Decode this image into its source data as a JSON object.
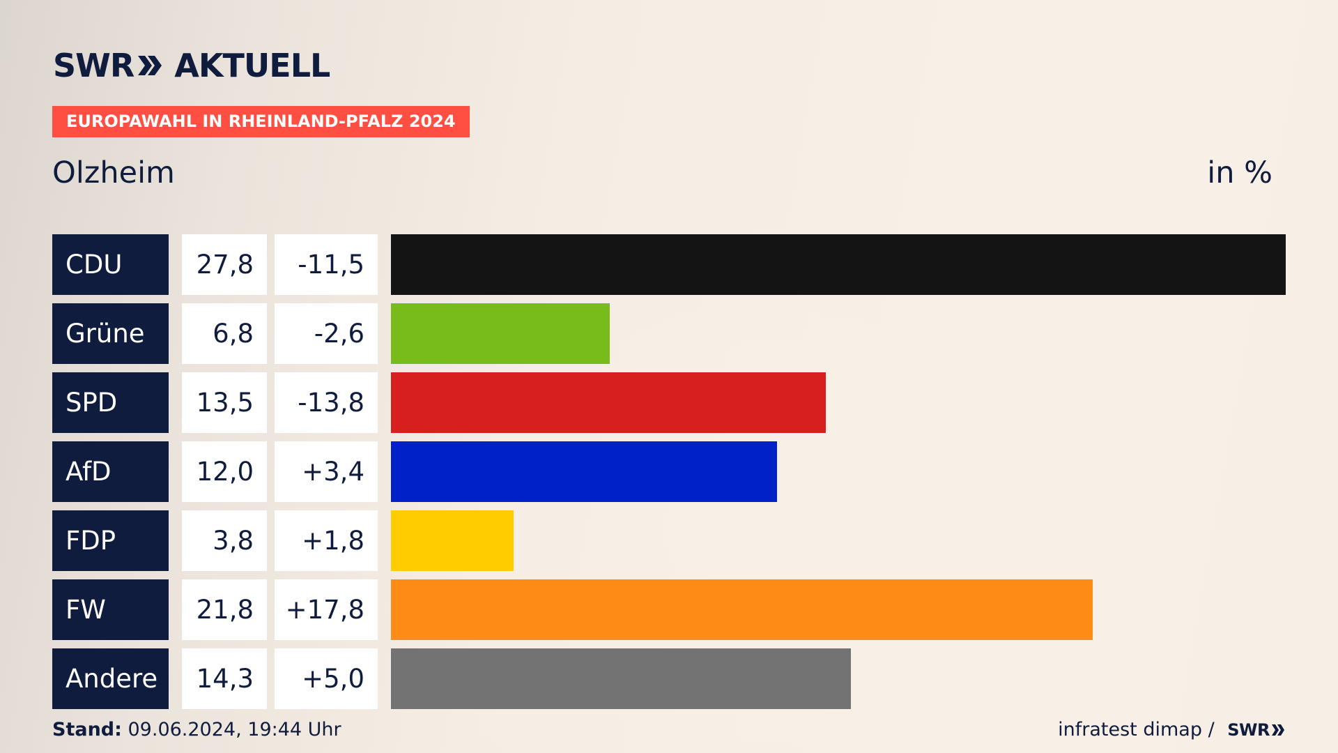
{
  "header": {
    "logo_swr": "SWR",
    "logo_aktuell": "AKTUELL",
    "logo_icon": "double-chevron-icon",
    "banner": "EUROPAWAHL IN RHEINLAND-PFALZ 2024",
    "place": "Olzheim",
    "unit": "in %"
  },
  "chart_data": {
    "type": "bar",
    "orientation": "horizontal",
    "title": "Olzheim",
    "unit_label": "in %",
    "categories": [
      "CDU",
      "Grüne",
      "SPD",
      "AfD",
      "FDP",
      "FW",
      "Andere"
    ],
    "values": [
      27.8,
      6.8,
      13.5,
      12.0,
      3.8,
      21.8,
      14.3
    ],
    "value_labels": [
      "27,8",
      "6,8",
      "13,5",
      "12,0",
      "3,8",
      "21,8",
      "14,3"
    ],
    "diff_labels": [
      "-11,5",
      "-2,6",
      "-13,8",
      "+3,4",
      "+1,8",
      "+17,8",
      "+5,0"
    ],
    "colors": [
      "#141414",
      "#78bc1b",
      "#d71f1d",
      "#0021c8",
      "#ffcc00",
      "#ff8c17",
      "#737373"
    ],
    "xlim": [
      0,
      27.8
    ],
    "grid": false,
    "legend": "none"
  },
  "footer": {
    "stand_label": "Stand:",
    "stand_value": " 09.06.2024, 19:44 Uhr",
    "source": "infratest dimap / ",
    "source_logo": "SWR",
    "source_logo_icon": "double-chevron-icon"
  }
}
